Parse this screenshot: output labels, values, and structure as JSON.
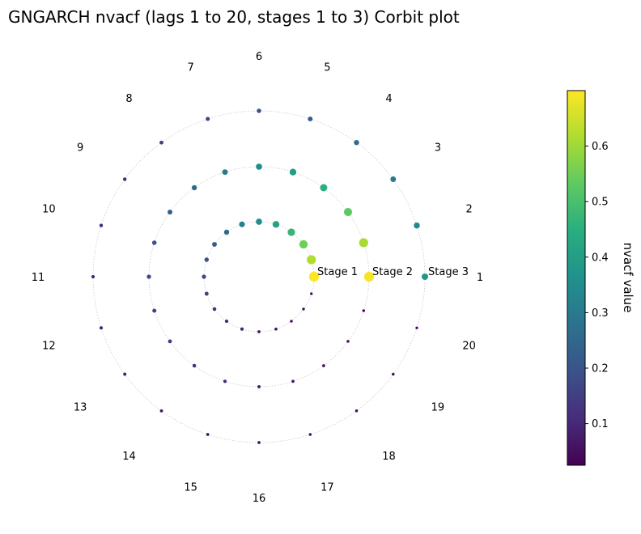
{
  "chart_data": {
    "type": "scatter",
    "subtype": "corbit",
    "title": "GNGARCH nvacf (lags 1 to 20, stages 1 to 3) Corbit plot",
    "lags": [
      "1",
      "2",
      "3",
      "4",
      "5",
      "6",
      "7",
      "8",
      "9",
      "10",
      "11",
      "12",
      "13",
      "14",
      "15",
      "16",
      "17",
      "18",
      "19",
      "20"
    ],
    "stage_labels": [
      "Stage 1",
      "Stage 2",
      "Stage 3"
    ],
    "colorbar": {
      "label": "nvacf value",
      "colormap": "viridis",
      "min": 0.025,
      "max": 0.7,
      "ticks": [
        "0.1",
        "0.2",
        "0.3",
        "0.4",
        "0.5",
        "0.6"
      ],
      "tick_values": [
        0.1,
        0.2,
        0.3,
        0.4,
        0.5,
        0.6
      ]
    },
    "grid": "dotted circles per stage",
    "series": [
      {
        "name": "Stage 1",
        "values": [
          0.7,
          0.62,
          0.55,
          0.47,
          0.41,
          0.36,
          0.31,
          0.26,
          0.22,
          0.19,
          0.17,
          0.15,
          0.13,
          0.11,
          0.09,
          0.07,
          0.06,
          0.05,
          0.04,
          0.03
        ]
      },
      {
        "name": "Stage 2",
        "values": [
          0.69,
          0.61,
          0.53,
          0.45,
          0.4,
          0.35,
          0.3,
          0.26,
          0.23,
          0.2,
          0.18,
          0.16,
          0.14,
          0.12,
          0.1,
          0.08,
          0.07,
          0.06,
          0.05,
          0.04
        ]
      },
      {
        "name": "Stage 3",
        "values": [
          0.38,
          0.34,
          0.3,
          0.26,
          0.22,
          0.19,
          0.16,
          0.14,
          0.12,
          0.11,
          0.1,
          0.09,
          0.08,
          0.07,
          0.065,
          0.06,
          0.05,
          0.045,
          0.04,
          0.03
        ]
      }
    ]
  }
}
